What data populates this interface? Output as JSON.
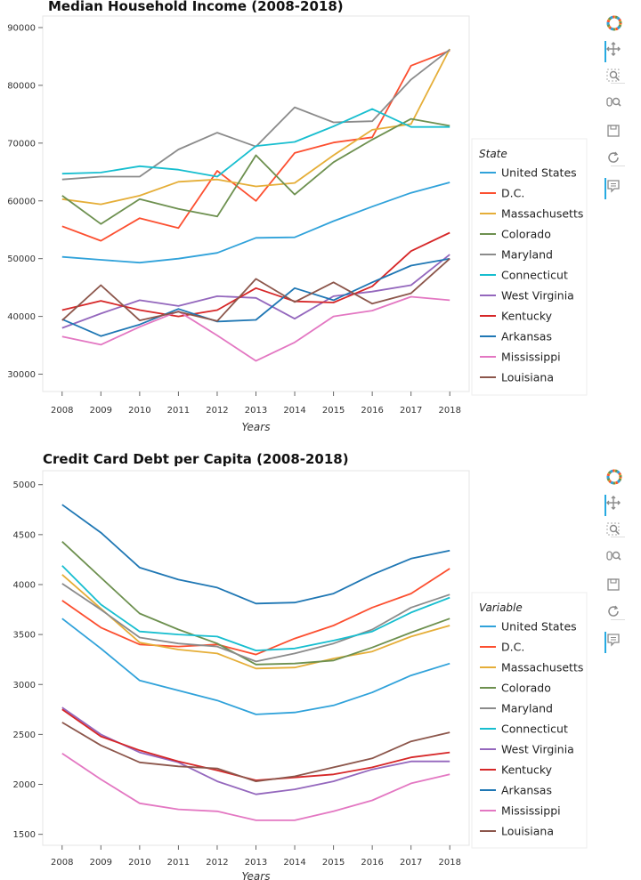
{
  "colors": {
    "United States": "#30a2da",
    "D.C.": "#fc4f30",
    "Massachusetts": "#e5ae38",
    "Colorado": "#6d904f",
    "Maryland": "#8b8b8b",
    "Connecticut": "#17becf",
    "West Virginia": "#9467bd",
    "Kentucky": "#d62728",
    "Arkansas": "#1f77b4",
    "Mississippi": "#e377c2",
    "Louisiana": "#8c564b"
  },
  "toolbar": {
    "icons": [
      "bokeh-logo-icon",
      "pan-icon",
      "box-zoom-icon",
      "wheel-zoom-icon",
      "save-icon",
      "reset-icon",
      "hover-icon"
    ]
  },
  "chart_data": [
    {
      "type": "line",
      "title": "Median Household Income (2008-2018)",
      "xlabel": "Years",
      "ylabel": "",
      "x": [
        2008,
        2009,
        2010,
        2011,
        2012,
        2013,
        2014,
        2015,
        2016,
        2017,
        2018
      ],
      "xlim": [
        2007.5,
        2018.5
      ],
      "ylim": [
        27000,
        92000
      ],
      "yticks": [
        30000,
        40000,
        50000,
        60000,
        70000,
        80000,
        90000
      ],
      "grid": false,
      "legend_title": "State",
      "legend_position": "right",
      "series": [
        {
          "name": "United States",
          "values": [
            50300,
            49800,
            49300,
            50000,
            51000,
            53600,
            53700,
            56500,
            59000,
            61400,
            63200
          ]
        },
        {
          "name": "D.C.",
          "values": [
            55600,
            53100,
            57000,
            55300,
            65200,
            60000,
            68300,
            70100,
            71000,
            83400,
            86000
          ]
        },
        {
          "name": "Massachusetts",
          "values": [
            60300,
            59400,
            60900,
            63300,
            63700,
            62500,
            63100,
            67900,
            72300,
            73300,
            86300
          ]
        },
        {
          "name": "Colorado",
          "values": [
            60900,
            56000,
            60300,
            58600,
            57300,
            67900,
            61100,
            66700,
            70600,
            74200,
            73000
          ]
        },
        {
          "name": "Maryland",
          "values": [
            63700,
            64200,
            64200,
            68900,
            71800,
            69400,
            76200,
            73600,
            73800,
            81000,
            86200
          ]
        },
        {
          "name": "Connecticut",
          "values": [
            64700,
            64900,
            66000,
            65400,
            64200,
            69500,
            70200,
            72900,
            75900,
            72800,
            72800
          ]
        },
        {
          "name": "West Virginia",
          "values": [
            38000,
            40500,
            42800,
            41800,
            43500,
            43200,
            39600,
            43500,
            44300,
            45400,
            50700
          ]
        },
        {
          "name": "Kentucky",
          "values": [
            41100,
            42700,
            41100,
            40000,
            41100,
            44900,
            42600,
            42400,
            45200,
            51300,
            54500
          ]
        },
        {
          "name": "Arkansas",
          "values": [
            39500,
            36600,
            38600,
            41300,
            39100,
            39400,
            44900,
            42800,
            45900,
            48800,
            50000
          ]
        },
        {
          "name": "Mississippi",
          "values": [
            36500,
            35100,
            38200,
            40900,
            36700,
            32300,
            35500,
            40000,
            41000,
            43400,
            42800
          ]
        },
        {
          "name": "Louisiana",
          "values": [
            39300,
            45400,
            39300,
            40800,
            39200,
            46500,
            42500,
            45900,
            42200,
            44000,
            50000
          ]
        }
      ]
    },
    {
      "type": "line",
      "title": "Credit Card Debt per Capita (2008-2018)",
      "xlabel": "Years",
      "ylabel": "",
      "x": [
        2008,
        2009,
        2010,
        2011,
        2012,
        2013,
        2014,
        2015,
        2016,
        2017,
        2018
      ],
      "xlim": [
        2007.5,
        2018.5
      ],
      "ylim": [
        1390,
        5140
      ],
      "yticks": [
        1500,
        2000,
        2500,
        3000,
        3500,
        4000,
        4500,
        5000
      ],
      "grid": false,
      "legend_title": "Variable",
      "legend_position": "right",
      "series": [
        {
          "name": "United States",
          "values": [
            3660,
            3360,
            3040,
            2940,
            2840,
            2700,
            2720,
            2790,
            2920,
            3090,
            3210
          ]
        },
        {
          "name": "D.C.",
          "values": [
            3840,
            3570,
            3400,
            3380,
            3400,
            3300,
            3460,
            3590,
            3770,
            3910,
            4160
          ]
        },
        {
          "name": "Massachusetts",
          "values": [
            4100,
            3760,
            3420,
            3350,
            3310,
            3160,
            3170,
            3260,
            3330,
            3480,
            3590
          ]
        },
        {
          "name": "Colorado",
          "values": [
            4430,
            4070,
            3710,
            3550,
            3410,
            3200,
            3210,
            3240,
            3370,
            3520,
            3660
          ]
        },
        {
          "name": "Maryland",
          "values": [
            4010,
            3750,
            3470,
            3410,
            3380,
            3230,
            3310,
            3410,
            3550,
            3770,
            3900
          ]
        },
        {
          "name": "Connecticut",
          "values": [
            4190,
            3800,
            3530,
            3500,
            3480,
            3340,
            3360,
            3440,
            3530,
            3720,
            3870
          ]
        },
        {
          "name": "West Virginia",
          "values": [
            2770,
            2500,
            2320,
            2220,
            2030,
            1900,
            1950,
            2030,
            2150,
            2230,
            2230
          ]
        },
        {
          "name": "Kentucky",
          "values": [
            2750,
            2480,
            2340,
            2230,
            2140,
            2040,
            2070,
            2100,
            2170,
            2270,
            2320
          ]
        },
        {
          "name": "Arkansas",
          "values": [
            4800,
            4520,
            4170,
            4050,
            3970,
            3810,
            3820,
            3910,
            4100,
            4260,
            4340
          ]
        },
        {
          "name": "Mississippi",
          "values": [
            2310,
            2050,
            1810,
            1750,
            1730,
            1640,
            1640,
            1730,
            1840,
            2010,
            2100
          ]
        },
        {
          "name": "Louisiana",
          "values": [
            2620,
            2390,
            2220,
            2180,
            2160,
            2030,
            2080,
            2170,
            2260,
            2430,
            2520
          ]
        }
      ]
    }
  ]
}
